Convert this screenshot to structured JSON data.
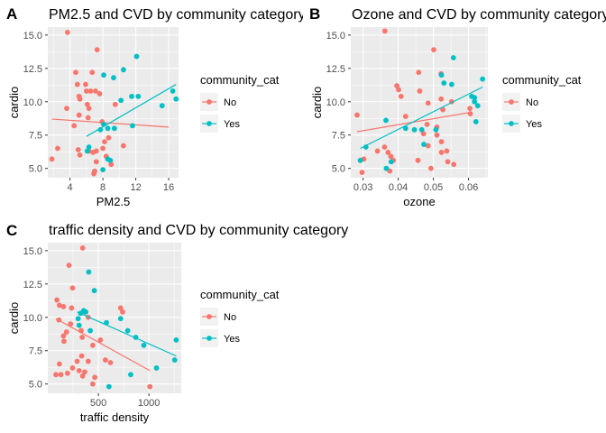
{
  "colors": {
    "No": "#F8766D",
    "Yes": "#00BFC4",
    "panel_bg": "#EBEBEB",
    "grid": "#FFFFFF"
  },
  "chart_data": [
    {
      "tag": "A",
      "type": "scatter",
      "title": "PM2.5 and CVD by community category",
      "xlabel": "PM2.5",
      "ylabel": "cardio",
      "xlim": [
        1.3,
        17.2
      ],
      "ylim": [
        4.3,
        15.6
      ],
      "xticks": [
        4,
        8,
        12,
        16
      ],
      "yticks": [
        5.0,
        7.5,
        10.0,
        12.5,
        15.0
      ],
      "grid": true,
      "legend": {
        "title": "community_cat",
        "entries": [
          "No",
          "Yes"
        ],
        "position": "right"
      },
      "series": [
        {
          "name": "No",
          "points": [
            [
              3.7,
              15.2
            ],
            [
              4.9,
              11.3
            ],
            [
              4.7,
              12.2
            ],
            [
              7.3,
              13.9
            ],
            [
              6.0,
              10.8
            ],
            [
              5.9,
              11.3
            ],
            [
              6.5,
              10.8
            ],
            [
              5.1,
              10.4
            ],
            [
              5.2,
              10.2
            ],
            [
              6.7,
              12.2
            ],
            [
              7.1,
              10.8
            ],
            [
              6.1,
              9.8
            ],
            [
              6.3,
              9.5
            ],
            [
              3.6,
              9.5
            ],
            [
              5.1,
              9.0
            ],
            [
              6.2,
              8.8
            ],
            [
              7.6,
              10.6
            ],
            [
              9.5,
              9.8
            ],
            [
              4.5,
              8.2
            ],
            [
              7.9,
              8.5
            ],
            [
              2.5,
              6.5
            ],
            [
              1.8,
              5.7
            ],
            [
              5.0,
              6.4
            ],
            [
              5.2,
              6.0
            ],
            [
              6.8,
              6.2
            ],
            [
              8.2,
              7.0
            ],
            [
              8.7,
              7.3
            ],
            [
              7.0,
              4.8
            ],
            [
              7.2,
              5.5
            ],
            [
              7.2,
              6.3
            ],
            [
              8.0,
              6.5
            ],
            [
              6.3,
              6.3
            ],
            [
              10.5,
              6.7
            ],
            [
              6.9,
              4.6
            ],
            [
              9.0,
              5.3
            ],
            [
              8.4,
              5.9
            ]
          ],
          "trend": [
            [
              1.8,
              8.7
            ],
            [
              16.0,
              8.1
            ]
          ]
        },
        {
          "name": "Yes",
          "points": [
            [
              8.1,
              12.0
            ],
            [
              9.3,
              11.8
            ],
            [
              10.5,
              12.4
            ],
            [
              12.1,
              13.4
            ],
            [
              11.5,
              10.4
            ],
            [
              12.3,
              10.4
            ],
            [
              10.2,
              10.1
            ],
            [
              16.5,
              10.8
            ],
            [
              16.9,
              10.2
            ],
            [
              15.2,
              9.7
            ],
            [
              8.1,
              8.3
            ],
            [
              8.6,
              8.0
            ],
            [
              9.4,
              8.0
            ],
            [
              7.7,
              7.9
            ],
            [
              11.6,
              8.2
            ],
            [
              6.3,
              6.6
            ],
            [
              6.1,
              6.3
            ],
            [
              8.6,
              5.7
            ],
            [
              8.9,
              5.6
            ],
            [
              8.0,
              4.9
            ]
          ],
          "trend": [
            [
              6.0,
              7.4
            ],
            [
              16.9,
              11.3
            ]
          ]
        }
      ]
    },
    {
      "tag": "B",
      "type": "scatter",
      "title": "Ozone and CVD by community category",
      "xlabel": "ozone",
      "ylabel": "cardio",
      "xlim": [
        0.0265,
        0.0655
      ],
      "ylim": [
        4.3,
        15.6
      ],
      "xticks": [
        0.03,
        0.04,
        0.05,
        0.06
      ],
      "yticks": [
        5.0,
        7.5,
        10.0,
        12.5,
        15.0
      ],
      "grid": true,
      "legend": {
        "title": "community_cat",
        "entries": [
          "No",
          "Yes"
        ],
        "position": "right"
      },
      "series": [
        {
          "name": "No",
          "points": [
            [
              0.0283,
              9.0
            ],
            [
              0.0362,
              15.3
            ],
            [
              0.0501,
              13.9
            ],
            [
              0.0458,
              12.2
            ],
            [
              0.0522,
              12.1
            ],
            [
              0.0396,
              11.2
            ],
            [
              0.0401,
              10.9
            ],
            [
              0.0461,
              10.8
            ],
            [
              0.0408,
              10.4
            ],
            [
              0.0522,
              10.2
            ],
            [
              0.0485,
              9.9
            ],
            [
              0.0552,
              10.0
            ],
            [
              0.0527,
              9.4
            ],
            [
              0.0604,
              9.5
            ],
            [
              0.0605,
              9.1
            ],
            [
              0.0421,
              8.9
            ],
            [
              0.0482,
              8.3
            ],
            [
              0.051,
              8.1
            ],
            [
              0.0361,
              6.6
            ],
            [
              0.0341,
              6.3
            ],
            [
              0.0371,
              6.2
            ],
            [
              0.0379,
              5.9
            ],
            [
              0.0386,
              5.6
            ],
            [
              0.0302,
              5.7
            ],
            [
              0.0297,
              4.7
            ],
            [
              0.0376,
              4.8
            ],
            [
              0.0472,
              7.6
            ],
            [
              0.0485,
              6.7
            ],
            [
              0.051,
              7.5
            ],
            [
              0.0523,
              7.0
            ],
            [
              0.0523,
              6.2
            ],
            [
              0.0538,
              6.3
            ],
            [
              0.0541,
              5.5
            ],
            [
              0.0493,
              5.0
            ],
            [
              0.0558,
              5.3
            ],
            [
              0.0456,
              5.6
            ]
          ],
          "trend": [
            [
              0.0283,
              7.75
            ],
            [
              0.0605,
              9.2
            ]
          ]
        },
        {
          "name": "Yes",
          "points": [
            [
              0.0557,
              13.3
            ],
            [
              0.0523,
              12.0
            ],
            [
              0.053,
              11.4
            ],
            [
              0.0552,
              11.3
            ],
            [
              0.064,
              11.7
            ],
            [
              0.0609,
              10.4
            ],
            [
              0.0617,
              10.3
            ],
            [
              0.0617,
              10.0
            ],
            [
              0.0626,
              9.7
            ],
            [
              0.0621,
              8.5
            ],
            [
              0.0365,
              8.6
            ],
            [
              0.0421,
              8.0
            ],
            [
              0.0446,
              7.9
            ],
            [
              0.0467,
              7.9
            ],
            [
              0.0507,
              7.9
            ],
            [
              0.0473,
              6.8
            ],
            [
              0.0308,
              6.6
            ],
            [
              0.0366,
              5.0
            ],
            [
              0.038,
              5.5
            ],
            [
              0.0292,
              5.6
            ]
          ],
          "trend": [
            [
              0.0292,
              6.5
            ],
            [
              0.064,
              11.1
            ]
          ]
        }
      ]
    },
    {
      "tag": "C",
      "type": "scatter",
      "title": "traffic density and CVD by community category",
      "xlabel": "traffic density",
      "ylabel": "cardio",
      "xlim": [
        0,
        1320
      ],
      "ylim": [
        4.3,
        15.6
      ],
      "xticks": [
        500,
        1000
      ],
      "yticks": [
        5.0,
        7.5,
        10.0,
        12.5,
        15.0
      ],
      "grid": true,
      "legend": {
        "title": "community_cat",
        "entries": [
          "No",
          "Yes"
        ],
        "position": "right"
      },
      "series": [
        {
          "name": "No",
          "points": [
            [
              345,
              15.2
            ],
            [
              210,
              13.9
            ],
            [
              245,
              12.2
            ],
            [
              90,
              11.3
            ],
            [
              115,
              10.9
            ],
            [
              155,
              10.8
            ],
            [
              235,
              10.7
            ],
            [
              370,
              10.4
            ],
            [
              720,
              10.7
            ],
            [
              740,
              10.4
            ],
            [
              110,
              9.8
            ],
            [
              225,
              9.5
            ],
            [
              185,
              8.9
            ],
            [
              155,
              8.6
            ],
            [
              160,
              8.2
            ],
            [
              330,
              9.0
            ],
            [
              400,
              10.0
            ],
            [
              340,
              8.5
            ],
            [
              445,
              7.9
            ],
            [
              520,
              8.3
            ],
            [
              115,
              6.5
            ],
            [
              80,
              5.7
            ],
            [
              130,
              5.7
            ],
            [
              195,
              5.8
            ],
            [
              245,
              6.2
            ],
            [
              310,
              6.0
            ],
            [
              290,
              6.7
            ],
            [
              335,
              7.1
            ],
            [
              345,
              5.6
            ],
            [
              365,
              5.9
            ],
            [
              400,
              6.7
            ],
            [
              445,
              5.0
            ],
            [
              465,
              5.5
            ],
            [
              570,
              6.8
            ],
            [
              620,
              6.6
            ],
            [
              1010,
              4.8
            ]
          ],
          "trend": [
            [
              80,
              9.9
            ],
            [
              1010,
              6.0
            ]
          ]
        },
        {
          "name": "Yes",
          "points": [
            [
              405,
              13.4
            ],
            [
              460,
              12.0
            ],
            [
              355,
              10.5
            ],
            [
              325,
              10.3
            ],
            [
              300,
              9.9
            ],
            [
              310,
              9.4
            ],
            [
              375,
              10.4
            ],
            [
              580,
              9.6
            ],
            [
              720,
              9.9
            ],
            [
              790,
              9.0
            ],
            [
              870,
              8.5
            ],
            [
              950,
              7.9
            ],
            [
              1270,
              8.3
            ],
            [
              1255,
              6.8
            ],
            [
              1075,
              6.2
            ],
            [
              820,
              5.7
            ],
            [
              605,
              4.8
            ],
            [
              420,
              9.0
            ]
          ],
          "trend": [
            [
              290,
              10.4
            ],
            [
              1270,
              7.1
            ]
          ]
        }
      ]
    }
  ]
}
